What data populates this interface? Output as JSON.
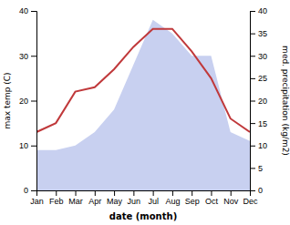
{
  "chart_data": {
    "type": "line",
    "xlabel": "date (month)",
    "ylabel": "max temp (C)",
    "y2label": "med. precipitation (kg/m2)",
    "categories": [
      "Jan",
      "Feb",
      "Mar",
      "Apr",
      "May",
      "Jun",
      "Jul",
      "Aug",
      "Sep",
      "Oct",
      "Nov",
      "Dec"
    ],
    "series": [
      {
        "type": "area",
        "axis": "y2",
        "color": "#c8d0f0",
        "values": [
          9,
          9,
          10,
          13,
          18,
          28,
          38,
          35,
          30,
          30,
          13,
          11
        ]
      },
      {
        "type": "line",
        "color": "#c0393b",
        "values": [
          13,
          15,
          22,
          23,
          27,
          32,
          36,
          36,
          31,
          25,
          16,
          13
        ]
      }
    ],
    "ylim": [
      0,
      40
    ],
    "yticks": [
      0,
      10,
      20,
      30,
      40
    ],
    "y2lim": [
      0,
      40
    ],
    "y2ticks": [
      0,
      5,
      10,
      15,
      20,
      25,
      30,
      35,
      40
    ],
    "grid": false
  }
}
